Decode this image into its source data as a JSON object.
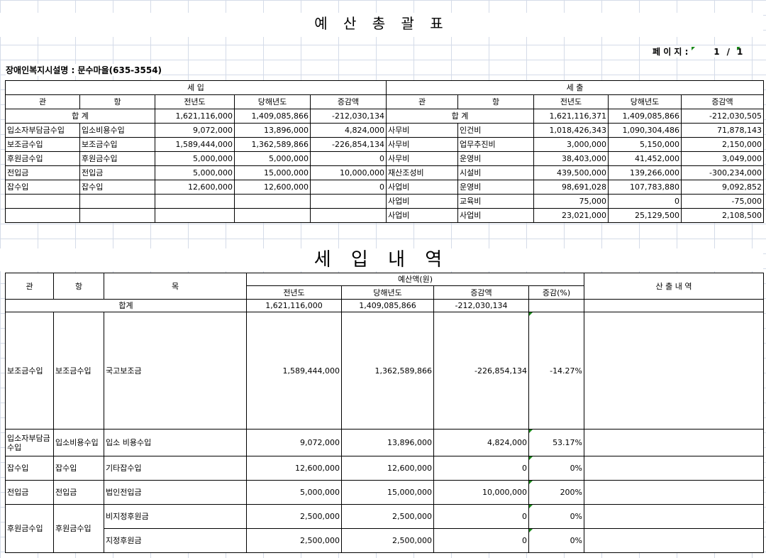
{
  "title": "예 산 총 괄 표",
  "page": {
    "label": "페 이 지 :",
    "current": "1",
    "sep": "/",
    "total": "1"
  },
  "facility": "장애인복지시설명 : 문수마을(635-3554)",
  "summary": {
    "income_header": "세          입",
    "expense_header": "세          출",
    "columns": [
      "관",
      "항",
      "전년도",
      "당해년도",
      "증감액"
    ],
    "income_total": {
      "label": "합          계",
      "prev": "1,621,116,000",
      "curr": "1,409,085,866",
      "diff": "-212,030,134"
    },
    "expense_total": {
      "label": "합          계",
      "prev": "1,621,116,371",
      "curr": "1,409,085,866",
      "diff": "-212,030,505"
    },
    "income_rows": [
      [
        "입소자부담금수입",
        "입소비용수입",
        "9,072,000",
        "13,896,000",
        "4,824,000"
      ],
      [
        "보조금수입",
        "보조금수입",
        "1,589,444,000",
        "1,362,589,866",
        "-226,854,134"
      ],
      [
        "후원금수입",
        "후원금수입",
        "5,000,000",
        "5,000,000",
        "0"
      ],
      [
        "전입금",
        "전입금",
        "5,000,000",
        "15,000,000",
        "10,000,000"
      ],
      [
        "잡수입",
        "잡수입",
        "12,600,000",
        "12,600,000",
        "0"
      ],
      [
        "",
        "",
        "",
        "",
        ""
      ],
      [
        "",
        "",
        "",
        "",
        ""
      ]
    ],
    "expense_rows": [
      [
        "사무비",
        "인건비",
        "1,018,426,343",
        "1,090,304,486",
        "71,878,143"
      ],
      [
        "사무비",
        "업무추진비",
        "3,000,000",
        "5,150,000",
        "2,150,000"
      ],
      [
        "사무비",
        "운영비",
        "38,403,000",
        "41,452,000",
        "3,049,000"
      ],
      [
        "재산조성비",
        "시설비",
        "439,500,000",
        "139,266,000",
        "-300,234,000"
      ],
      [
        "사업비",
        "운영비",
        "98,691,028",
        "107,783,880",
        "9,092,852"
      ],
      [
        "사업비",
        "교육비",
        "75,000",
        "0",
        "-75,000"
      ],
      [
        "사업비",
        " 사업비",
        "23,021,000",
        "25,129,500",
        "2,108,500"
      ]
    ]
  },
  "title2": "세 입 내 역",
  "detail": {
    "col_gwan": "관",
    "col_hang": "항",
    "col_mok": "목",
    "budget_header": "예산액(원)",
    "budget_cols": [
      "전년도",
      "당해년도",
      "증감액",
      "증감(%)"
    ],
    "calc_header": "산 출 내 역",
    "total": {
      "label": "합계",
      "prev": "1,621,116,000",
      "curr": "1,409,085,866",
      "diff": "-212,030,134",
      "pct": ""
    },
    "rows": [
      {
        "gwan": "보조금수입",
        "hang": "보조금수입",
        "items": [
          [
            "국고보조금",
            "1,589,444,000",
            "1,362,589,866",
            "-226,854,134",
            "-14.27%"
          ]
        ]
      },
      {
        "gwan": "입소자부담금수입",
        "hang": "입소비용수입",
        "items": [
          [
            "입소 비용수입",
            "9,072,000",
            "13,896,000",
            "4,824,000",
            "53.17%"
          ]
        ]
      },
      {
        "gwan": "잡수입",
        "hang": "잡수입",
        "items": [
          [
            "기타잡수입",
            "12,600,000",
            "12,600,000",
            "0",
            "0%"
          ]
        ]
      },
      {
        "gwan": "전입금",
        "hang": "전입금",
        "items": [
          [
            "법인전입금",
            "5,000,000",
            "15,000,000",
            "10,000,000",
            "200%"
          ]
        ]
      },
      {
        "gwan": "후원금수입",
        "hang": "후원금수입",
        "items": [
          [
            "비지정후원금",
            "2,500,000",
            "2,500,000",
            "0",
            "0%"
          ],
          [
            "지정후원금",
            "2,500,000",
            "2,500,000",
            "0",
            "0%"
          ]
        ]
      }
    ]
  },
  "colors": {
    "grid": "#d4dbe8",
    "comment_marker": "#1a8a1a"
  }
}
